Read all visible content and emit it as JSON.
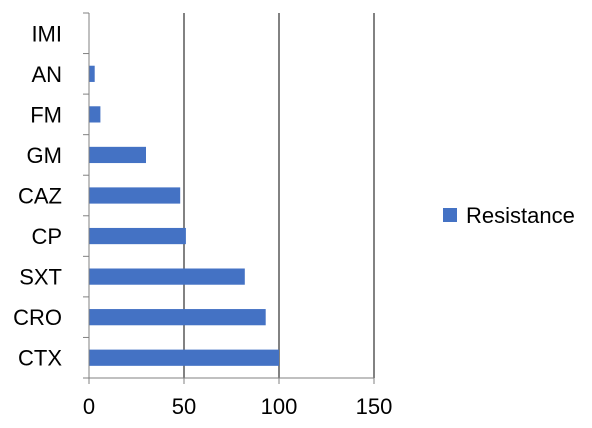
{
  "chart_data": {
    "type": "bar",
    "orientation": "horizontal",
    "categories": [
      "IMI",
      "AN",
      "FM",
      "GM",
      "CAZ",
      "CP",
      "SXT",
      "CRO",
      "CTX"
    ],
    "series": [
      {
        "name": "Resistance",
        "values": [
          0,
          3,
          6,
          30,
          48,
          51,
          82,
          93,
          100
        ]
      }
    ],
    "xlim": [
      0,
      150
    ],
    "xticks": [
      0,
      50,
      100,
      150
    ],
    "grid": true,
    "legend_position": "right",
    "title": "",
    "xlabel": "",
    "ylabel": ""
  },
  "colors": {
    "bar": "#4472C4",
    "gridline": "#595959",
    "axis": "#808080"
  }
}
